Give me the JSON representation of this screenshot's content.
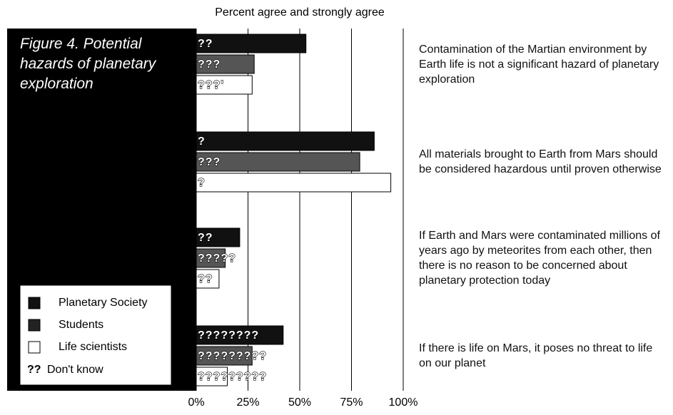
{
  "chart_data": {
    "type": "bar",
    "orientation": "horizontal",
    "title": "Figure 4. Potential hazards of planetary exploration",
    "xlabel": "Percent agree and strongly agree",
    "categories": [
      "Contamination of the Martian environment by Earth life is not a significant hazard of planetary exploration",
      "All materials brought to Earth from Mars should be considered hazardous until proven otherwise",
      "If Earth and Mars were contaminated millions of years ago by meteorites from each other, then there is no reason to be concerned about planetary protection today",
      "If there is life on Mars, it poses no threat to life on our planet"
    ],
    "series": [
      {
        "name": "Planetary Society",
        "color": "#111111",
        "values": [
          53,
          86,
          21,
          42
        ],
        "marks": [
          "??",
          "?",
          "??",
          "????????"
        ]
      },
      {
        "name": "Students",
        "color": "#555555",
        "values": [
          28,
          79,
          14,
          27
        ],
        "marks": [
          "???",
          "???",
          "?????",
          "?????????"
        ]
      },
      {
        "name": "Life scientists",
        "color": "#ffffff",
        "values": [
          27,
          94,
          11,
          15
        ],
        "marks": [
          "???'",
          "?",
          "??",
          "?????????"
        ]
      }
    ],
    "dont_know": {
      "symbol": "??",
      "label": "Don't know"
    },
    "xlim": [
      0,
      100
    ],
    "xticks": [
      {
        "value": 0,
        "label": "0%"
      },
      {
        "value": 25,
        "label": "25%"
      },
      {
        "value": 50,
        "label": "50%"
      },
      {
        "value": 75,
        "label": "75%"
      },
      {
        "value": 100,
        "label": "100%"
      }
    ],
    "grid": true
  }
}
